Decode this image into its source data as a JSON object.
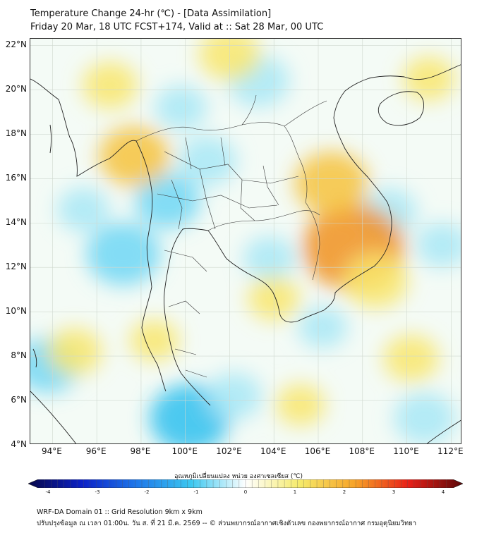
{
  "title": {
    "line1": "Temperature Change 24-hr (℃) - [Data Assimilation]",
    "line2": "Friday 20 Mar, 18 UTC FCST+174, Valid at :: Sat 28 Mar, 00 UTC"
  },
  "map": {
    "lat_labels": [
      "22°N",
      "20°N",
      "18°N",
      "16°N",
      "14°N",
      "12°N",
      "10°N",
      "8°N",
      "6°N",
      "4°N"
    ],
    "lon_labels": [
      "94°E",
      "96°E",
      "98°E",
      "100°E",
      "102°E",
      "104°E",
      "106°E",
      "108°E",
      "110°E",
      "112°E"
    ],
    "lon_range": [
      93,
      112.5
    ],
    "lat_range": [
      4,
      22.3
    ],
    "grid": true,
    "warm_spots": [
      {
        "lon": 107.6,
        "lat": 12.9,
        "delta": 2.1
      },
      {
        "lon": 106.6,
        "lat": 15.8,
        "delta": 1.2
      },
      {
        "lon": 97.7,
        "lat": 17.0,
        "delta": 1.1
      },
      {
        "lon": 108.6,
        "lat": 11.4,
        "delta": 0.9
      },
      {
        "lon": 102.0,
        "lat": 21.6,
        "delta": 0.8
      },
      {
        "lon": 96.6,
        "lat": 20.2,
        "delta": 0.6
      },
      {
        "lon": 104.0,
        "lat": 10.6,
        "delta": 0.5
      },
      {
        "lon": 95.0,
        "lat": 8.2,
        "delta": 0.6
      },
      {
        "lon": 110.2,
        "lat": 7.9,
        "delta": 0.6
      },
      {
        "lon": 98.6,
        "lat": 8.7,
        "delta": 0.4
      },
      {
        "lon": 111.0,
        "lat": 20.5,
        "delta": 0.5
      },
      {
        "lon": 105.2,
        "lat": 5.8,
        "delta": 0.4
      }
    ],
    "cool_spots": [
      {
        "lon": 100.2,
        "lat": 5.2,
        "delta": -1.4
      },
      {
        "lon": 97.2,
        "lat": 12.6,
        "delta": -1.2
      },
      {
        "lon": 99.2,
        "lat": 15.0,
        "delta": -0.9
      },
      {
        "lon": 101.0,
        "lat": 16.8,
        "delta": -0.7
      },
      {
        "lon": 103.3,
        "lat": 20.4,
        "delta": -0.8
      },
      {
        "lon": 93.8,
        "lat": 7.6,
        "delta": -0.9
      },
      {
        "lon": 103.8,
        "lat": 12.4,
        "delta": -0.5
      },
      {
        "lon": 109.2,
        "lat": 14.5,
        "delta": -0.6
      },
      {
        "lon": 110.8,
        "lat": 5.2,
        "delta": -0.8
      },
      {
        "lon": 102.2,
        "lat": 6.2,
        "delta": -0.6
      },
      {
        "lon": 95.4,
        "lat": 14.6,
        "delta": -0.5
      },
      {
        "lon": 99.8,
        "lat": 19.2,
        "delta": -0.5
      },
      {
        "lon": 106.2,
        "lat": 9.3,
        "delta": -0.4
      },
      {
        "lon": 111.6,
        "lat": 13.0,
        "delta": -0.5
      }
    ]
  },
  "colorbar": {
    "title": "อุณหภูมิเปลี่ยนแปลง หน่วย องศาเซลเซียส (℃)",
    "min": -4,
    "max": 4,
    "tick_labels": [
      "-4",
      "-3",
      "-2",
      "-1",
      "0",
      "1",
      "2",
      "3",
      "4"
    ],
    "colors": [
      "#08084a",
      "#0c22c8",
      "#1e78ea",
      "#3cc8f0",
      "#ffffff",
      "#f5ea6a",
      "#f7a428",
      "#e82018",
      "#5a0808"
    ]
  },
  "footer": {
    "line1": "WRF-DA Domain 01 :: Grid Resolution 9km x 9km",
    "line2": "ปรับปรุงข้อมูล ณ เวลา 01:00น. วัน ส. ที่ 21 มี.ค. 2569 -- © ส่วนพยากรณ์อากาศเชิงตัวเลข กองพยากรณ์อากาศ กรมอุตุนิยมวิทยา"
  }
}
